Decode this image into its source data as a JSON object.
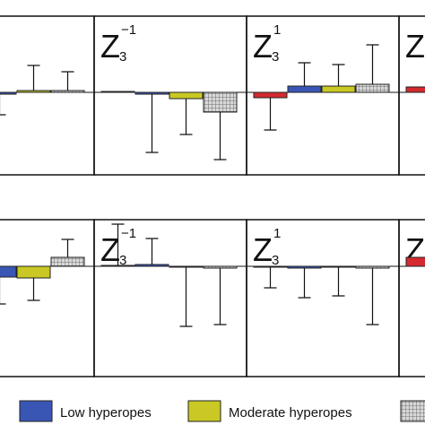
{
  "chart_data": [
    {
      "type": "bar",
      "ylim": [
        -0.92,
        0.85
      ],
      "values": [
        null,
        -0.02,
        0.02,
        0.02
      ],
      "errors": [
        null,
        0.23,
        0.28,
        0.21
      ],
      "colors": [
        "#d42a2f",
        "#3a56b5",
        "#c9c824",
        "#8c8c8c"
      ]
    },
    {
      "type": "bar",
      "title": "Z",
      "subscript": "3",
      "superscript": "−1",
      "ylim": [
        -0.92,
        0.85
      ],
      "values": [
        0.01,
        -0.02,
        -0.07,
        -0.22
      ],
      "errors": [
        null,
        0.65,
        0.4,
        0.53
      ],
      "colors": [
        "#d42a2f",
        "#3a56b5",
        "#c9c824",
        "#8c8c8c"
      ]
    },
    {
      "type": "bar",
      "title": "Z",
      "subscript": "3",
      "superscript": "1",
      "ylim": [
        -0.92,
        0.85
      ],
      "values": [
        -0.06,
        0.07,
        0.07,
        0.09
      ],
      "errors": [
        0.36,
        0.26,
        0.24,
        0.44
      ],
      "colors": [
        "#d42a2f",
        "#3a56b5",
        "#c9c824",
        "#8c8c8c"
      ]
    },
    {
      "type": "bar",
      "title": "Z",
      "ylim": [
        -0.92,
        0.85
      ],
      "values": [
        0.06,
        null,
        null,
        null
      ],
      "errors": [
        null,
        null,
        null,
        null
      ],
      "colors": [
        "#d42a2f",
        "#3a56b5",
        "#c9c824",
        "#8c8c8c"
      ]
    },
    {
      "type": "bar",
      "ylim": [
        -1.23,
        0.52
      ],
      "values": [
        null,
        -0.12,
        -0.13,
        0.1
      ],
      "errors": [
        null,
        0.3,
        0.25,
        0.2
      ],
      "colors": [
        "#d42a2f",
        "#3a56b5",
        "#c9c824",
        "#8c8c8c"
      ]
    },
    {
      "type": "bar",
      "title": "Z",
      "subscript": "3",
      "superscript": "−1",
      "ylim": [
        -1.23,
        0.52
      ],
      "values": [
        0.01,
        0.02,
        -0.01,
        -0.02
      ],
      "errors": [
        0.46,
        0.29,
        0.66,
        0.63
      ],
      "colors": [
        "#d42a2f",
        "#3a56b5",
        "#c9c824",
        "#8c8c8c"
      ]
    },
    {
      "type": "bar",
      "title": "Z",
      "subscript": "3",
      "superscript": "1",
      "ylim": [
        -1.23,
        0.52
      ],
      "values": [
        -0.01,
        -0.02,
        -0.01,
        -0.02
      ],
      "errors": [
        0.23,
        0.33,
        0.32,
        0.63
      ],
      "colors": [
        "#d42a2f",
        "#3a56b5",
        "#c9c824",
        "#8c8c8c"
      ]
    },
    {
      "type": "bar",
      "title": "Z",
      "ylim": [
        -1.23,
        0.52
      ],
      "values": [
        0.1,
        null,
        null,
        null
      ],
      "errors": [
        null,
        null,
        null,
        null
      ],
      "colors": [
        "#d42a2f",
        "#3a56b5",
        "#c9c824",
        "#8c8c8c"
      ]
    }
  ],
  "legend": [
    {
      "name": "Low hyperopes",
      "color": "#3a56b5"
    },
    {
      "name": "Moderate hyperopes",
      "color": "#c9c824"
    },
    {
      "name": null,
      "color": "#8c8c8c"
    }
  ]
}
